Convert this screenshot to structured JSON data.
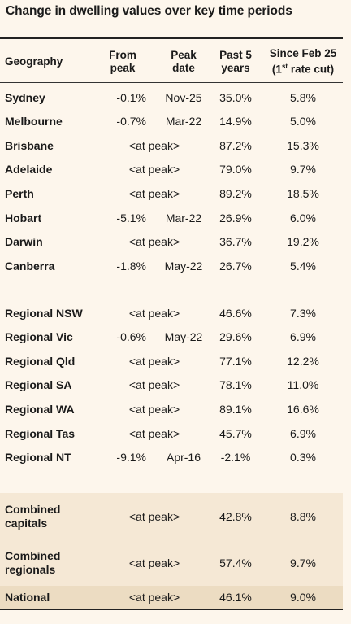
{
  "title": "Change in dwelling values over key time periods",
  "headers": {
    "geography": "Geography",
    "from_peak": [
      "From",
      "peak"
    ],
    "peak_date": [
      "Peak",
      "date"
    ],
    "past5": [
      "Past 5",
      "years"
    ],
    "since": [
      "Since Feb 25",
      "(1",
      "st",
      " rate cut)"
    ]
  },
  "capitals": [
    {
      "geo": "Sydney",
      "from": "-0.1%",
      "peak": "Nov-25",
      "p5": "35.0%",
      "since": "5.8%"
    },
    {
      "geo": "Melbourne",
      "from": "-0.7%",
      "peak": "Mar-22",
      "p5": "14.9%",
      "since": "5.0%"
    },
    {
      "geo": "Brisbane",
      "at_peak": "<at peak>",
      "p5": "87.2%",
      "since": "15.3%"
    },
    {
      "geo": "Adelaide",
      "at_peak": "<at peak>",
      "p5": "79.0%",
      "since": "9.7%"
    },
    {
      "geo": "Perth",
      "at_peak": "<at peak>",
      "p5": "89.2%",
      "since": "18.5%"
    },
    {
      "geo": "Hobart",
      "from": "-5.1%",
      "peak": "Mar-22",
      "p5": "26.9%",
      "since": "6.0%"
    },
    {
      "geo": "Darwin",
      "at_peak": "<at peak>",
      "p5": "36.7%",
      "since": "19.2%"
    },
    {
      "geo": "Canberra",
      "from": "-1.8%",
      "peak": "May-22",
      "p5": "26.7%",
      "since": "5.4%"
    }
  ],
  "regionals": [
    {
      "geo": "Regional NSW",
      "at_peak": "<at peak>",
      "p5": "46.6%",
      "since": "7.3%"
    },
    {
      "geo": "Regional Vic",
      "from": "-0.6%",
      "peak": "May-22",
      "p5": "29.6%",
      "since": "6.9%"
    },
    {
      "geo": "Regional Qld",
      "at_peak": "<at peak>",
      "p5": "77.1%",
      "since": "12.2%"
    },
    {
      "geo": "Regional SA",
      "at_peak": "<at peak>",
      "p5": "78.1%",
      "since": "11.0%"
    },
    {
      "geo": "Regional WA",
      "at_peak": "<at peak>",
      "p5": "89.1%",
      "since": "16.6%"
    },
    {
      "geo": "Regional Tas",
      "at_peak": "<at peak>",
      "p5": "45.7%",
      "since": "6.9%"
    },
    {
      "geo": "Regional NT",
      "from": "-9.1%",
      "peak": "Apr-16",
      "p5": "-2.1%",
      "since": "0.3%"
    }
  ],
  "aggregates": [
    {
      "geo": [
        "Combined",
        "capitals"
      ],
      "at_peak": "<at peak>",
      "p5": "42.8%",
      "since": "8.8%"
    },
    {
      "geo": [
        "Combined",
        "regionals"
      ],
      "at_peak": "<at peak>",
      "p5": "57.4%",
      "since": "9.7%"
    },
    {
      "geo": "National",
      "at_peak": "<at peak>",
      "p5": "46.1%",
      "since": "9.0%"
    }
  ],
  "colors": {
    "background": "#fdf6ec",
    "aggregate_band": "#f5e8d5",
    "national_band": "#ecdcc2",
    "text": "#1a1a1a"
  }
}
